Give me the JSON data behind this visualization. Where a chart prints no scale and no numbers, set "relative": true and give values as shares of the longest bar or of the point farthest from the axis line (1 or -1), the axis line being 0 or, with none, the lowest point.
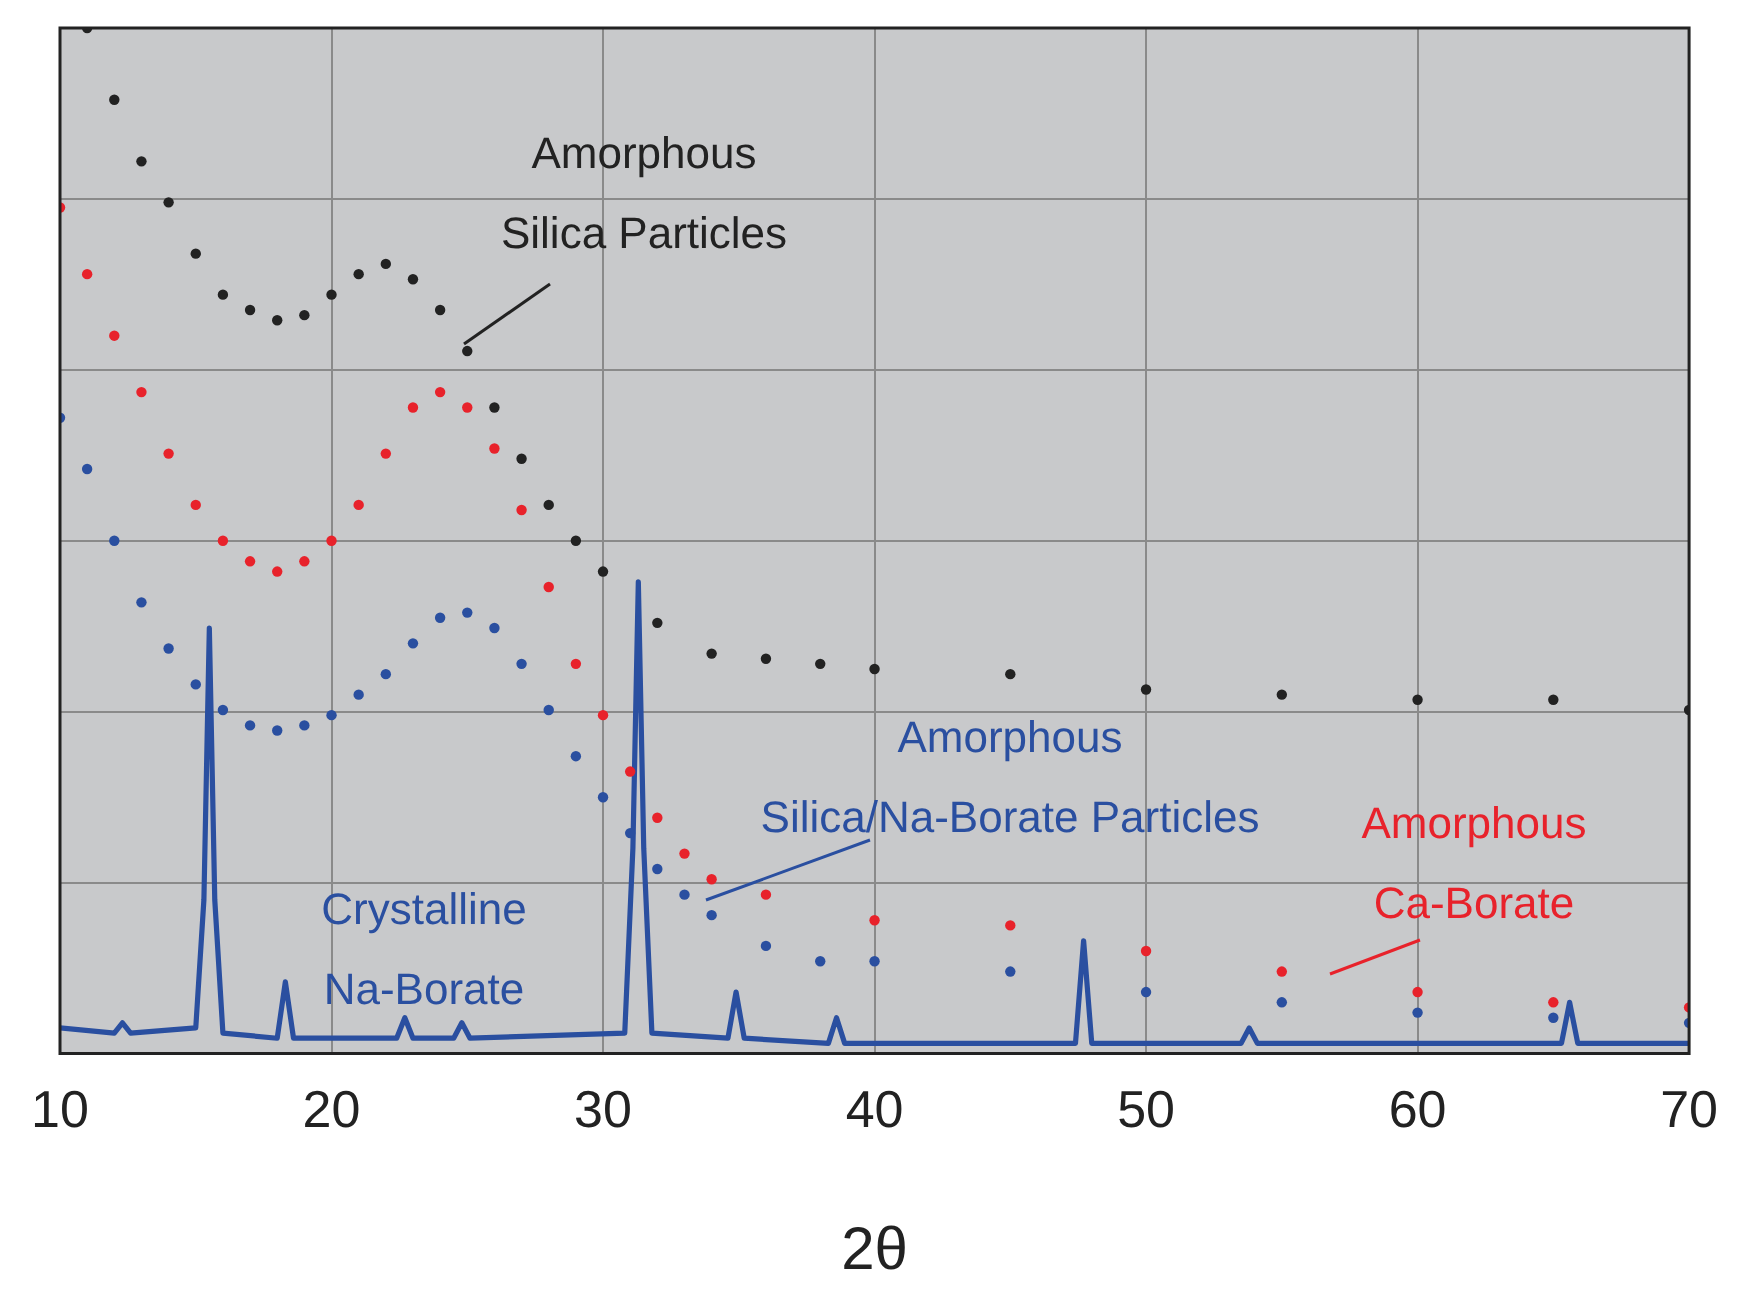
{
  "chart_data": {
    "type": "line",
    "xlabel": "2θ",
    "xlim": [
      10,
      70
    ],
    "xticks": [
      10,
      20,
      30,
      40,
      50,
      60,
      70
    ],
    "relative": true,
    "grid": true,
    "legend": false,
    "series": [
      {
        "name": "Amorphous Silica Particles",
        "type": "scatter",
        "marker": "circle",
        "color": "#222222",
        "x": [
          11,
          12,
          13,
          14,
          15,
          16,
          17,
          18,
          19,
          20,
          21,
          22,
          23,
          24,
          25,
          26,
          27,
          28,
          29,
          30,
          32,
          34,
          36,
          38,
          40,
          45,
          50,
          55,
          60,
          65,
          70
        ],
        "values": [
          1.0,
          0.93,
          0.87,
          0.83,
          0.78,
          0.74,
          0.725,
          0.715,
          0.72,
          0.74,
          0.76,
          0.77,
          0.755,
          0.725,
          0.685,
          0.63,
          0.58,
          0.535,
          0.5,
          0.47,
          0.42,
          0.39,
          0.385,
          0.38,
          0.375,
          0.37,
          0.355,
          0.35,
          0.345,
          0.345,
          0.335
        ]
      },
      {
        "name": "Amorphous Ca-Borate",
        "type": "scatter",
        "marker": "circle",
        "color": "#e8222b",
        "x": [
          10,
          11,
          12,
          13,
          14,
          15,
          16,
          17,
          18,
          19,
          20,
          21,
          22,
          23,
          24,
          25,
          26,
          27,
          28,
          29,
          30,
          31,
          32,
          33,
          34,
          36,
          40,
          45,
          50,
          55,
          60,
          65,
          70
        ],
        "values": [
          0.825,
          0.76,
          0.7,
          0.645,
          0.585,
          0.535,
          0.5,
          0.48,
          0.47,
          0.48,
          0.5,
          0.535,
          0.585,
          0.63,
          0.645,
          0.63,
          0.59,
          0.53,
          0.455,
          0.38,
          0.33,
          0.275,
          0.23,
          0.195,
          0.17,
          0.155,
          0.13,
          0.125,
          0.1,
          0.08,
          0.06,
          0.05,
          0.045
        ]
      },
      {
        "name": "Amorphous Silica/Na-Borate Particles",
        "type": "scatter",
        "marker": "circle",
        "color": "#2a4fa0",
        "x": [
          10,
          11,
          12,
          13,
          14,
          15,
          16,
          17,
          18,
          19,
          20,
          21,
          22,
          23,
          24,
          25,
          26,
          27,
          28,
          29,
          30,
          31,
          32,
          33,
          34,
          36,
          38,
          40,
          45,
          50,
          55,
          60,
          65,
          70
        ],
        "values": [
          0.62,
          0.57,
          0.5,
          0.44,
          0.395,
          0.36,
          0.335,
          0.32,
          0.315,
          0.32,
          0.33,
          0.35,
          0.37,
          0.4,
          0.425,
          0.43,
          0.415,
          0.38,
          0.335,
          0.29,
          0.25,
          0.215,
          0.18,
          0.155,
          0.135,
          0.105,
          0.09,
          0.09,
          0.08,
          0.06,
          0.05,
          0.04,
          0.035,
          0.03
        ]
      },
      {
        "name": "Crystalline Na-Borate",
        "type": "line",
        "marker": "none",
        "line_style": "solid",
        "color": "#2a4fa0",
        "x": [
          10,
          12,
          12.3,
          12.6,
          15,
          15.3,
          15.5,
          15.7,
          16,
          18,
          18.3,
          18.6,
          22.4,
          22.7,
          23,
          24.5,
          24.8,
          25.1,
          30.8,
          31.1,
          31.3,
          31.5,
          31.8,
          34.6,
          34.9,
          35.2,
          38.3,
          38.6,
          38.9,
          47.4,
          47.7,
          48,
          53.5,
          53.8,
          54.1,
          65.3,
          65.6,
          65.9,
          70
        ],
        "values": [
          0.025,
          0.02,
          0.03,
          0.02,
          0.025,
          0.15,
          0.415,
          0.15,
          0.02,
          0.015,
          0.07,
          0.015,
          0.015,
          0.035,
          0.015,
          0.015,
          0.03,
          0.015,
          0.02,
          0.2,
          0.46,
          0.2,
          0.02,
          0.015,
          0.06,
          0.015,
          0.01,
          0.035,
          0.01,
          0.01,
          0.11,
          0.01,
          0.01,
          0.025,
          0.01,
          0.01,
          0.05,
          0.01,
          0.01
        ]
      }
    ]
  }
}
